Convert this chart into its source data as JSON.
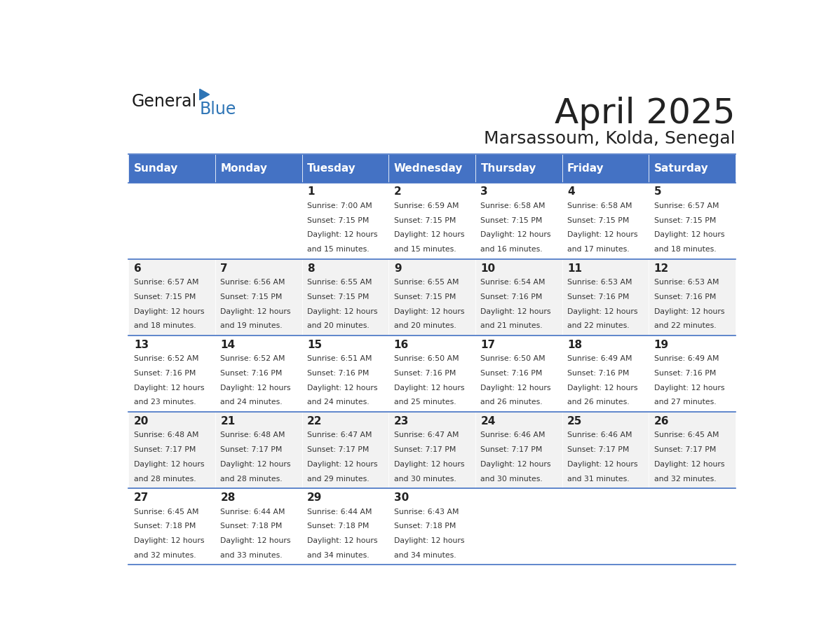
{
  "title": "April 2025",
  "subtitle": "Marsassoum, Kolda, Senegal",
  "days_of_week": [
    "Sunday",
    "Monday",
    "Tuesday",
    "Wednesday",
    "Thursday",
    "Friday",
    "Saturday"
  ],
  "header_bg": "#4472C4",
  "header_text": "#FFFFFF",
  "row_bg_even": "#FFFFFF",
  "row_bg_odd": "#F2F2F2",
  "cell_border": "#4472C4",
  "title_color": "#222222",
  "subtitle_color": "#222222",
  "text_color": "#333333",
  "day_num_color": "#222222",
  "logo_general_color": "#1a1a1a",
  "logo_blue_color": "#2E75B6",
  "calendar": [
    [
      {
        "day": null,
        "sunrise": null,
        "sunset": null,
        "daylight_line1": null,
        "daylight_line2": null
      },
      {
        "day": null,
        "sunrise": null,
        "sunset": null,
        "daylight_line1": null,
        "daylight_line2": null
      },
      {
        "day": 1,
        "sunrise": "7:00 AM",
        "sunset": "7:15 PM",
        "daylight_line1": "12 hours",
        "daylight_line2": "and 15 minutes."
      },
      {
        "day": 2,
        "sunrise": "6:59 AM",
        "sunset": "7:15 PM",
        "daylight_line1": "12 hours",
        "daylight_line2": "and 15 minutes."
      },
      {
        "day": 3,
        "sunrise": "6:58 AM",
        "sunset": "7:15 PM",
        "daylight_line1": "12 hours",
        "daylight_line2": "and 16 minutes."
      },
      {
        "day": 4,
        "sunrise": "6:58 AM",
        "sunset": "7:15 PM",
        "daylight_line1": "12 hours",
        "daylight_line2": "and 17 minutes."
      },
      {
        "day": 5,
        "sunrise": "6:57 AM",
        "sunset": "7:15 PM",
        "daylight_line1": "12 hours",
        "daylight_line2": "and 18 minutes."
      }
    ],
    [
      {
        "day": 6,
        "sunrise": "6:57 AM",
        "sunset": "7:15 PM",
        "daylight_line1": "12 hours",
        "daylight_line2": "and 18 minutes."
      },
      {
        "day": 7,
        "sunrise": "6:56 AM",
        "sunset": "7:15 PM",
        "daylight_line1": "12 hours",
        "daylight_line2": "and 19 minutes."
      },
      {
        "day": 8,
        "sunrise": "6:55 AM",
        "sunset": "7:15 PM",
        "daylight_line1": "12 hours",
        "daylight_line2": "and 20 minutes."
      },
      {
        "day": 9,
        "sunrise": "6:55 AM",
        "sunset": "7:15 PM",
        "daylight_line1": "12 hours",
        "daylight_line2": "and 20 minutes."
      },
      {
        "day": 10,
        "sunrise": "6:54 AM",
        "sunset": "7:16 PM",
        "daylight_line1": "12 hours",
        "daylight_line2": "and 21 minutes."
      },
      {
        "day": 11,
        "sunrise": "6:53 AM",
        "sunset": "7:16 PM",
        "daylight_line1": "12 hours",
        "daylight_line2": "and 22 minutes."
      },
      {
        "day": 12,
        "sunrise": "6:53 AM",
        "sunset": "7:16 PM",
        "daylight_line1": "12 hours",
        "daylight_line2": "and 22 minutes."
      }
    ],
    [
      {
        "day": 13,
        "sunrise": "6:52 AM",
        "sunset": "7:16 PM",
        "daylight_line1": "12 hours",
        "daylight_line2": "and 23 minutes."
      },
      {
        "day": 14,
        "sunrise": "6:52 AM",
        "sunset": "7:16 PM",
        "daylight_line1": "12 hours",
        "daylight_line2": "and 24 minutes."
      },
      {
        "day": 15,
        "sunrise": "6:51 AM",
        "sunset": "7:16 PM",
        "daylight_line1": "12 hours",
        "daylight_line2": "and 24 minutes."
      },
      {
        "day": 16,
        "sunrise": "6:50 AM",
        "sunset": "7:16 PM",
        "daylight_line1": "12 hours",
        "daylight_line2": "and 25 minutes."
      },
      {
        "day": 17,
        "sunrise": "6:50 AM",
        "sunset": "7:16 PM",
        "daylight_line1": "12 hours",
        "daylight_line2": "and 26 minutes."
      },
      {
        "day": 18,
        "sunrise": "6:49 AM",
        "sunset": "7:16 PM",
        "daylight_line1": "12 hours",
        "daylight_line2": "and 26 minutes."
      },
      {
        "day": 19,
        "sunrise": "6:49 AM",
        "sunset": "7:16 PM",
        "daylight_line1": "12 hours",
        "daylight_line2": "and 27 minutes."
      }
    ],
    [
      {
        "day": 20,
        "sunrise": "6:48 AM",
        "sunset": "7:17 PM",
        "daylight_line1": "12 hours",
        "daylight_line2": "and 28 minutes."
      },
      {
        "day": 21,
        "sunrise": "6:48 AM",
        "sunset": "7:17 PM",
        "daylight_line1": "12 hours",
        "daylight_line2": "and 28 minutes."
      },
      {
        "day": 22,
        "sunrise": "6:47 AM",
        "sunset": "7:17 PM",
        "daylight_line1": "12 hours",
        "daylight_line2": "and 29 minutes."
      },
      {
        "day": 23,
        "sunrise": "6:47 AM",
        "sunset": "7:17 PM",
        "daylight_line1": "12 hours",
        "daylight_line2": "and 30 minutes."
      },
      {
        "day": 24,
        "sunrise": "6:46 AM",
        "sunset": "7:17 PM",
        "daylight_line1": "12 hours",
        "daylight_line2": "and 30 minutes."
      },
      {
        "day": 25,
        "sunrise": "6:46 AM",
        "sunset": "7:17 PM",
        "daylight_line1": "12 hours",
        "daylight_line2": "and 31 minutes."
      },
      {
        "day": 26,
        "sunrise": "6:45 AM",
        "sunset": "7:17 PM",
        "daylight_line1": "12 hours",
        "daylight_line2": "and 32 minutes."
      }
    ],
    [
      {
        "day": 27,
        "sunrise": "6:45 AM",
        "sunset": "7:18 PM",
        "daylight_line1": "12 hours",
        "daylight_line2": "and 32 minutes."
      },
      {
        "day": 28,
        "sunrise": "6:44 AM",
        "sunset": "7:18 PM",
        "daylight_line1": "12 hours",
        "daylight_line2": "and 33 minutes."
      },
      {
        "day": 29,
        "sunrise": "6:44 AM",
        "sunset": "7:18 PM",
        "daylight_line1": "12 hours",
        "daylight_line2": "and 34 minutes."
      },
      {
        "day": 30,
        "sunrise": "6:43 AM",
        "sunset": "7:18 PM",
        "daylight_line1": "12 hours",
        "daylight_line2": "and 34 minutes."
      },
      {
        "day": null,
        "sunrise": null,
        "sunset": null,
        "daylight_line1": null,
        "daylight_line2": null
      },
      {
        "day": null,
        "sunrise": null,
        "sunset": null,
        "daylight_line1": null,
        "daylight_line2": null
      },
      {
        "day": null,
        "sunrise": null,
        "sunset": null,
        "daylight_line1": null,
        "daylight_line2": null
      }
    ]
  ]
}
